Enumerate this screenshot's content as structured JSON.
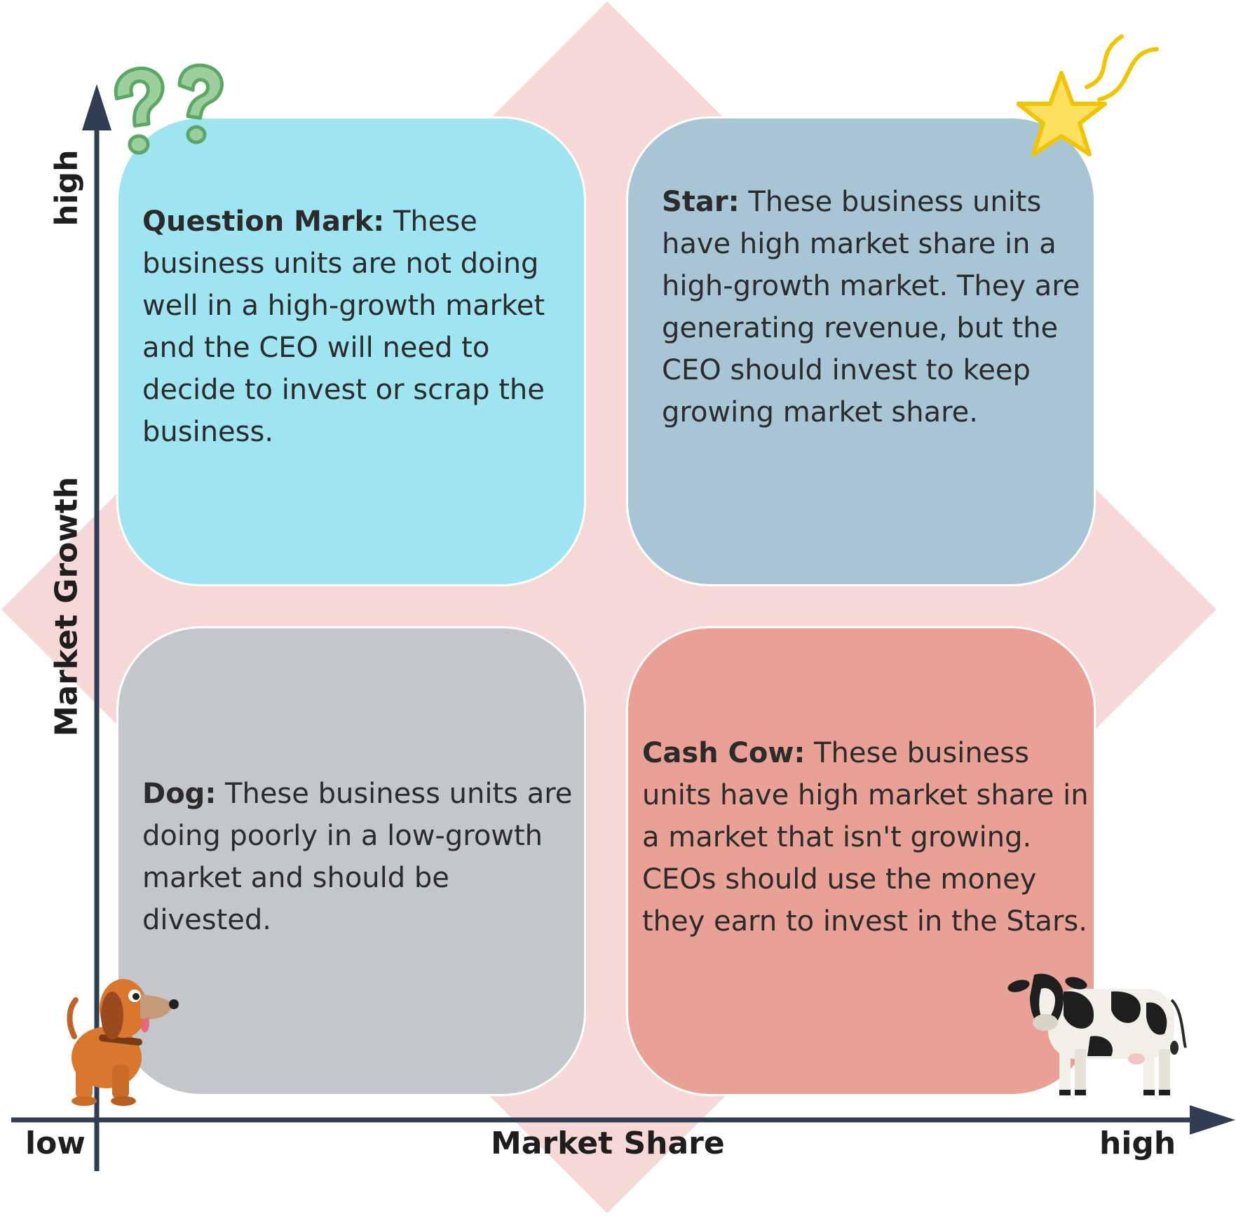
{
  "colors": {
    "diamond": "#f6d9d6",
    "question_mark": "#9fe5f1",
    "star": "#a8c5d6",
    "dog": "#c3c7cc",
    "cash_cow": "#e9a195",
    "axis": "#2f3e52"
  },
  "axes": {
    "x_title": "Market Share",
    "x_low": "low",
    "x_high": "high",
    "y_title": "Market Growth",
    "y_high": "high"
  },
  "quadrants": {
    "question_mark": {
      "title": "Question Mark:",
      "text": " These business units are not doing well in a high-growth market and the CEO will need to decide to invest or scrap the business.",
      "icon": "question-marks-icon"
    },
    "star": {
      "title": "Star:",
      "text": " These business units have high market share in a high-growth market. They are generating revenue, but the CEO should invest to keep growing market share.",
      "icon": "shooting-star-icon"
    },
    "dog": {
      "title": "Dog:",
      "text": " These business units are doing poorly in a low-growth market and should be divested.",
      "icon": "dog-icon"
    },
    "cash_cow": {
      "title": "Cash Cow:",
      "text": " These business units have high market share in a market that isn't growing. CEOs should use the money they earn to invest in the Stars.",
      "icon": "cow-icon"
    }
  }
}
